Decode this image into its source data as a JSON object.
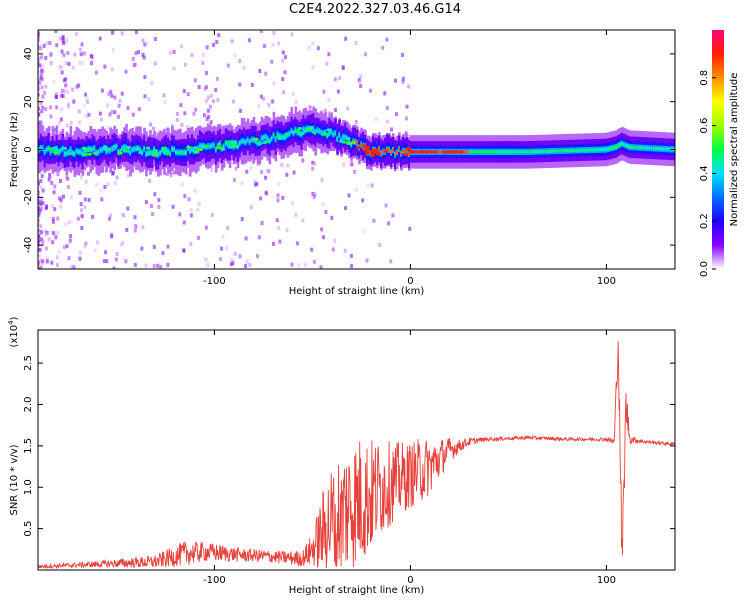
{
  "title": "C2E4.2022.327.03.46.G14",
  "colors": {
    "line": "#e8403a",
    "axis": "#000000",
    "colormap": [
      "#ffffff",
      "#8a00ff",
      "#2000ff",
      "#0070ff",
      "#00e0ff",
      "#00ff40",
      "#a0ff00",
      "#ffff00",
      "#ff9000",
      "#ff2000",
      "#ff0080"
    ]
  },
  "chart_data": [
    {
      "type": "heatmap",
      "name": "spectrogram",
      "xlabel": "Height of straight line (km)",
      "ylabel": "Frequency (Hz)",
      "xlim": [
        -190,
        135
      ],
      "ylim": [
        -50,
        50
      ],
      "xticks": [
        -100,
        0,
        100
      ],
      "xtick_labels": [
        "-100",
        "0",
        "100"
      ],
      "yticks": [
        -40,
        -20,
        0,
        20,
        40
      ],
      "ytick_labels": [
        "-40",
        "-20",
        "0",
        "20",
        "40"
      ],
      "ridge": {
        "x": [
          -185,
          -170,
          -150,
          -130,
          -110,
          -90,
          -75,
          -60,
          -50,
          -42,
          -36,
          -30,
          -25,
          -20,
          -10,
          0,
          20,
          40,
          60,
          80,
          100,
          105,
          108,
          112,
          135
        ],
        "y": [
          0,
          -1,
          0,
          -1,
          0,
          2,
          4,
          7,
          8,
          7,
          5,
          3,
          1,
          -1,
          -1,
          -1,
          -1,
          -1,
          -1,
          -0.5,
          0,
          1,
          2.5,
          1,
          0
        ]
      },
      "colorbar": {
        "label": "Normalized spectral amplitude",
        "range": [
          0,
          1
        ],
        "ticks": [
          0.0,
          0.2,
          0.4,
          0.6,
          0.8
        ],
        "tick_labels": [
          "0.0",
          "0.2",
          "0.4",
          "0.6",
          "0.8"
        ]
      }
    },
    {
      "type": "line",
      "name": "snr",
      "xlabel": "Height of straight line (km)",
      "ylabel": "SNR (10 * v/v)",
      "yscale_label": "(x10",
      "yscale_exp": "4",
      "xlim": [
        -190,
        135
      ],
      "ylim": [
        0,
        2.9
      ],
      "xticks": [
        -100,
        0,
        100
      ],
      "xtick_labels": [
        "-100",
        "0",
        "100"
      ],
      "yticks": [
        0.5,
        1.0,
        1.5,
        2.0,
        2.5
      ],
      "ytick_labels": [
        "0.5",
        "1.0",
        "1.5",
        "2.0",
        "2.5"
      ],
      "series": [
        {
          "x": [
            -190,
            -170,
            -150,
            -130,
            -115,
            -105,
            -95,
            -85,
            -75,
            -65,
            -55,
            -50,
            -45,
            -40,
            -35,
            -30,
            -25,
            -20,
            -15,
            -10,
            -5,
            0,
            5,
            10,
            15,
            20,
            25,
            30,
            35,
            40,
            60,
            80,
            100,
            104,
            106,
            108,
            110,
            112,
            120,
            135
          ],
          "y": [
            0.04,
            0.06,
            0.08,
            0.1,
            0.2,
            0.22,
            0.2,
            0.18,
            0.17,
            0.15,
            0.14,
            0.25,
            0.45,
            0.6,
            0.7,
            0.8,
            0.85,
            0.9,
            1.0,
            1.05,
            1.1,
            1.15,
            1.2,
            1.25,
            1.35,
            1.45,
            1.5,
            1.55,
            1.57,
            1.58,
            1.6,
            1.58,
            1.58,
            1.55,
            2.8,
            0.1,
            2.0,
            1.58,
            1.55,
            1.52
          ],
          "noise": [
            0.02,
            0.03,
            0.05,
            0.08,
            0.15,
            0.12,
            0.1,
            0.08,
            0.08,
            0.08,
            0.1,
            0.2,
            0.5,
            0.7,
            0.8,
            0.8,
            0.8,
            0.7,
            0.6,
            0.5,
            0.45,
            0.4,
            0.4,
            0.35,
            0.25,
            0.15,
            0.08,
            0.05,
            0.03,
            0.02,
            0.02,
            0.02,
            0.02,
            0.05,
            0.3,
            0.3,
            0.3,
            0.05,
            0.02,
            0.02
          ]
        }
      ]
    }
  ]
}
